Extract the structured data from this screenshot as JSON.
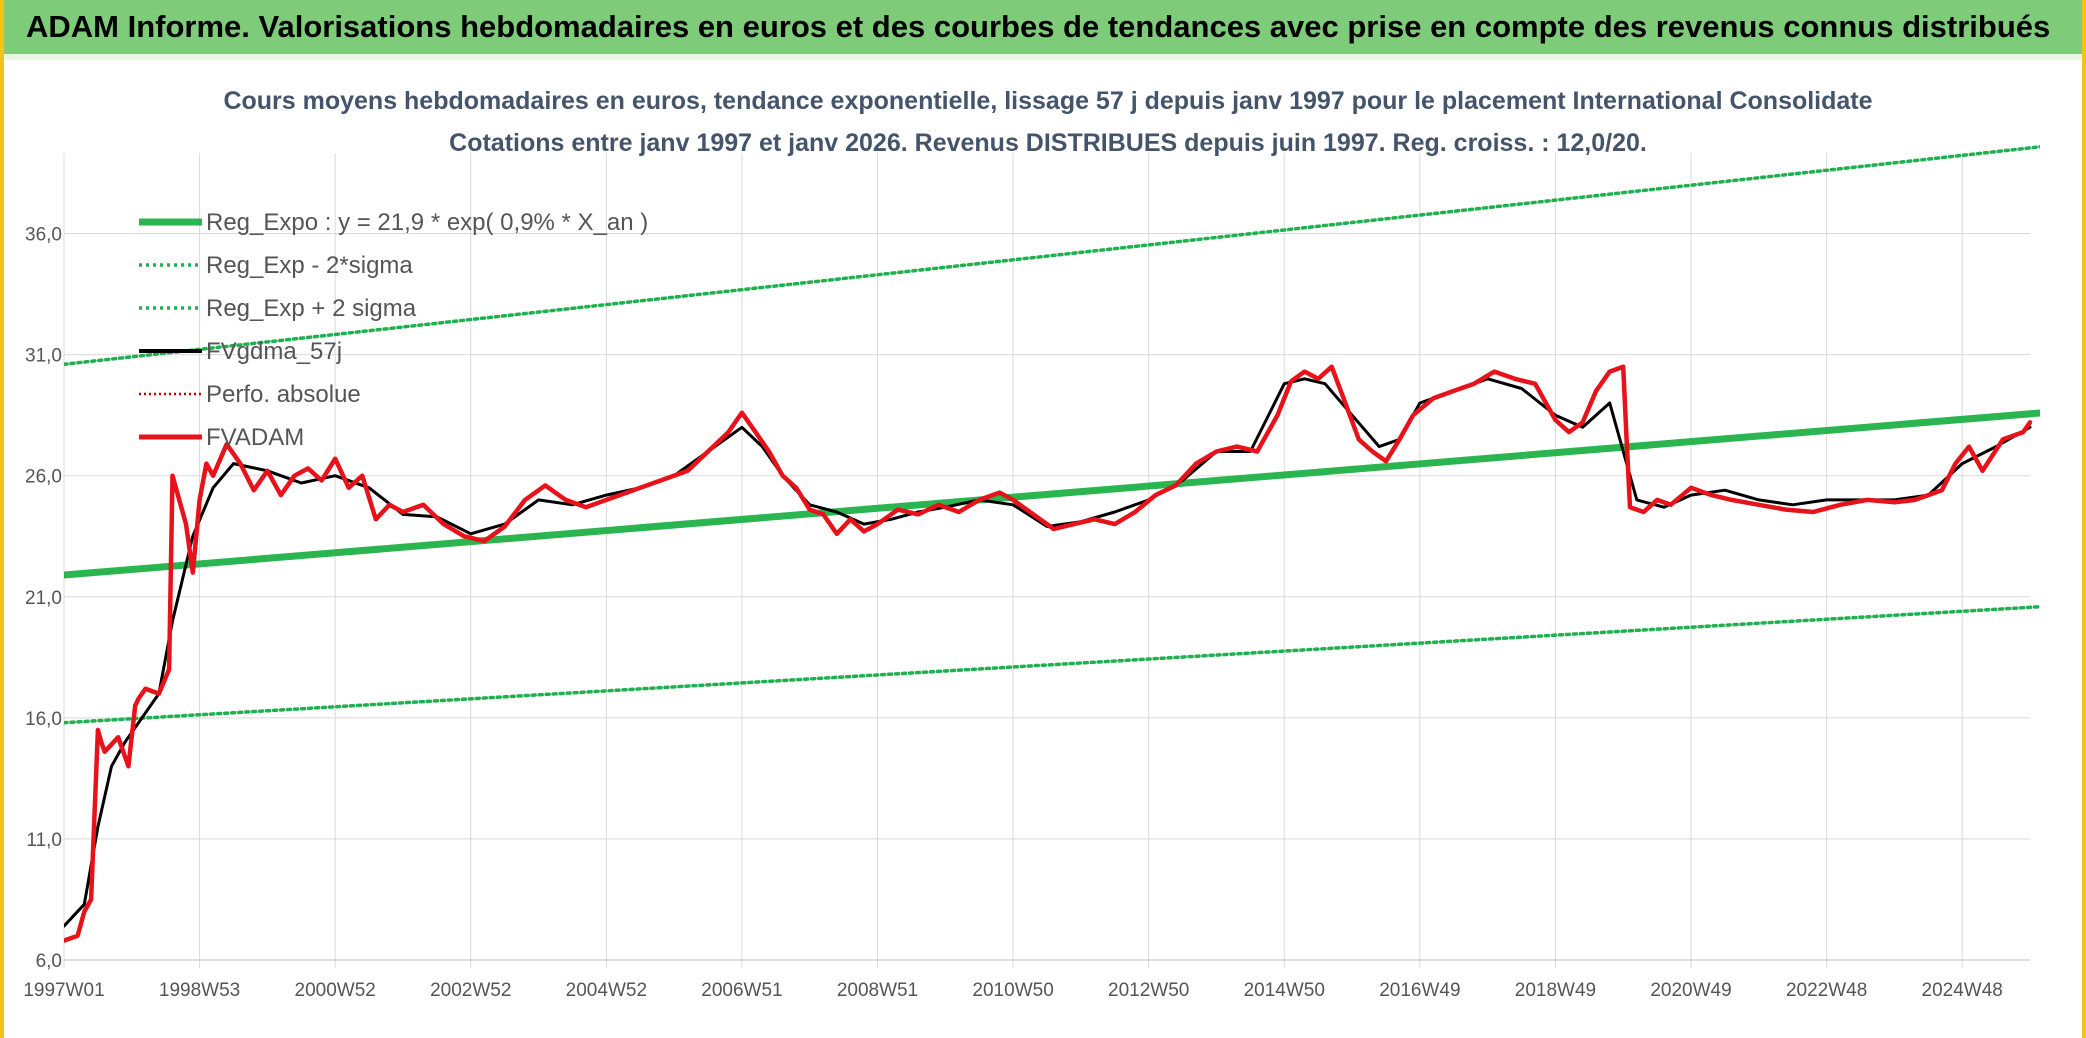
{
  "banner": {
    "title": "ADAM Informe. Valorisations hebdomadaires en euros et des courbes de tendances avec prise en compte des revenus connus distribués"
  },
  "colors": {
    "banner_bg": "#7ecb7a",
    "reg": "#2ab550",
    "band": "#1fb04f",
    "fvgdma": "#000000",
    "perfo": "#c00000",
    "fvadam": "#e8121b"
  },
  "chart_data": {
    "type": "line",
    "title_line1": "Cours moyens hebdomadaires en euros, tendance exponentielle, lissage 57 j depuis janv 1997 pour le placement International Consolidate",
    "title_line2": "Cotations entre janv 1997 et janv 2026. Revenus DISTRIBUES depuis juin 1997. Reg. croiss. : 12,0/20.",
    "x_range": [
      1997.0,
      2026.0
    ],
    "ylim": [
      6.0,
      38.5
    ],
    "y_ticks": [
      "6,0",
      "11,0",
      "16,0",
      "21,0",
      "26,0",
      "31,0",
      "36,0"
    ],
    "y_tick_values": [
      6,
      11,
      16,
      21,
      26,
      31,
      36
    ],
    "x_ticks": [
      "1997W01",
      "1998W53",
      "2000W52",
      "2002W52",
      "2004W52",
      "2006W51",
      "2008W51",
      "2010W50",
      "2012W50",
      "2014W50",
      "2016W49",
      "2018W49",
      "2020W49",
      "2022W48",
      "2024W48"
    ],
    "x_tick_values": [
      1997.0,
      1999.0,
      2001.0,
      2003.0,
      2005.0,
      2007.0,
      2009.0,
      2011.0,
      2013.0,
      2015.0,
      2017.0,
      2019.0,
      2021.0,
      2023.0,
      2025.0
    ],
    "legend": {
      "placement": "top-left",
      "entries": [
        {
          "label": "Reg_Expo : y = 21,9 * exp( 0,9% *  X_an )",
          "style": "thick"
        },
        {
          "label": "Reg_Exp - 2*sigma",
          "style": "dotted-green"
        },
        {
          "label": "Reg_Exp + 2 sigma",
          "style": "dotted-green"
        },
        {
          "label": "FVgdma_57j",
          "style": "solid-black"
        },
        {
          "label": "Perfo. absolue",
          "style": "dotted-red"
        },
        {
          "label": "FVADAM",
          "style": "solid-red"
        }
      ]
    },
    "series": [
      {
        "name": "Reg_Expo : y = 21,9 * exp( 0,9% *  X_an )",
        "x": [
          1997.0,
          2026.2
        ],
        "y": [
          21.9,
          28.6
        ]
      },
      {
        "name": "Reg_Exp - 2*sigma",
        "x": [
          1997.0,
          2026.2
        ],
        "y": [
          15.8,
          20.6
        ]
      },
      {
        "name": "Reg_Exp + 2 sigma",
        "x": [
          1997.0,
          2026.2
        ],
        "y": [
          30.6,
          39.6
        ]
      },
      {
        "name": "FVgdma_57j",
        "x": [
          1997.0,
          1997.3,
          1997.5,
          1997.7,
          1997.9,
          1998.1,
          1998.4,
          1998.6,
          1998.9,
          1999.2,
          1999.5,
          2000.0,
          2000.5,
          2001.0,
          2001.5,
          2002.0,
          2002.5,
          2003.0,
          2003.5,
          2004.0,
          2004.5,
          2005.0,
          2005.5,
          2006.0,
          2006.5,
          2007.0,
          2007.3,
          2007.6,
          2008.0,
          2008.4,
          2008.8,
          2009.2,
          2009.6,
          2010.0,
          2010.5,
          2011.0,
          2011.5,
          2012.0,
          2012.5,
          2013.0,
          2013.5,
          2014.0,
          2014.5,
          2015.0,
          2015.3,
          2015.6,
          2016.0,
          2016.4,
          2016.7,
          2017.0,
          2017.5,
          2018.0,
          2018.5,
          2019.0,
          2019.4,
          2019.8,
          2020.2,
          2020.6,
          2021.0,
          2021.5,
          2022.0,
          2022.5,
          2023.0,
          2023.5,
          2024.0,
          2024.5,
          2025.0,
          2025.5,
          2026.0
        ],
        "y": [
          7.4,
          8.3,
          11.5,
          14.0,
          15.0,
          15.8,
          17.0,
          20.0,
          23.5,
          25.5,
          26.5,
          26.2,
          25.7,
          26.0,
          25.5,
          24.4,
          24.3,
          23.6,
          24.0,
          25.0,
          24.8,
          25.2,
          25.5,
          26.0,
          27.0,
          28.0,
          27.2,
          26.0,
          24.8,
          24.5,
          24.0,
          24.2,
          24.5,
          24.7,
          25.0,
          24.8,
          23.9,
          24.1,
          24.5,
          25.0,
          25.8,
          27.0,
          27.0,
          29.8,
          30.0,
          29.8,
          28.5,
          27.2,
          27.5,
          29.0,
          29.5,
          30.0,
          29.6,
          28.5,
          28.0,
          29.0,
          25.0,
          24.7,
          25.2,
          25.4,
          25.0,
          24.8,
          25.0,
          25.0,
          25.0,
          25.2,
          26.5,
          27.2,
          28.0
        ]
      },
      {
        "name": "FVADAM",
        "x": [
          1997.0,
          1997.2,
          1997.3,
          1997.4,
          1997.5,
          1997.55,
          1997.6,
          1997.8,
          1997.95,
          1998.05,
          1998.1,
          1998.2,
          1998.4,
          1998.55,
          1998.6,
          1998.8,
          1998.9,
          1999.0,
          1999.1,
          1999.2,
          1999.4,
          1999.6,
          1999.8,
          2000.0,
          2000.2,
          2000.4,
          2000.6,
          2000.8,
          2001.0,
          2001.2,
          2001.4,
          2001.6,
          2001.8,
          2002.0,
          2002.3,
          2002.6,
          2002.9,
          2003.2,
          2003.5,
          2003.8,
          2004.1,
          2004.4,
          2004.7,
          2005.0,
          2005.4,
          2005.8,
          2006.2,
          2006.5,
          2006.8,
          2007.0,
          2007.2,
          2007.4,
          2007.6,
          2007.8,
          2008.0,
          2008.2,
          2008.4,
          2008.6,
          2008.8,
          2009.0,
          2009.3,
          2009.6,
          2009.9,
          2010.2,
          2010.5,
          2010.8,
          2011.0,
          2011.3,
          2011.6,
          2011.9,
          2012.2,
          2012.5,
          2012.8,
          2013.1,
          2013.4,
          2013.7,
          2014.0,
          2014.3,
          2014.6,
          2014.9,
          2015.1,
          2015.3,
          2015.5,
          2015.7,
          2015.9,
          2016.1,
          2016.3,
          2016.5,
          2016.7,
          2016.9,
          2017.2,
          2017.5,
          2017.8,
          2018.1,
          2018.4,
          2018.7,
          2019.0,
          2019.2,
          2019.4,
          2019.6,
          2019.8,
          2020.0,
          2020.05,
          2020.1,
          2020.3,
          2020.5,
          2020.7,
          2021.0,
          2021.3,
          2021.6,
          2022.0,
          2022.4,
          2022.8,
          2023.2,
          2023.6,
          2024.0,
          2024.3,
          2024.5,
          2024.7,
          2024.9,
          2025.1,
          2025.3,
          2025.6,
          2025.9,
          2026.0
        ],
        "y": [
          6.8,
          7.0,
          8.0,
          8.5,
          15.5,
          15.0,
          14.6,
          15.2,
          14.0,
          16.5,
          16.8,
          17.2,
          17.0,
          18.0,
          26.0,
          24.0,
          22.0,
          25.0,
          26.5,
          26.0,
          27.3,
          26.5,
          25.4,
          26.2,
          25.2,
          26.0,
          26.3,
          25.8,
          26.7,
          25.5,
          26.0,
          24.2,
          24.8,
          24.5,
          24.8,
          24.0,
          23.5,
          23.3,
          23.9,
          25.0,
          25.6,
          25.0,
          24.7,
          25.0,
          25.4,
          25.8,
          26.2,
          27.0,
          27.8,
          28.6,
          27.8,
          27.0,
          26.0,
          25.5,
          24.6,
          24.4,
          23.6,
          24.2,
          23.7,
          24.0,
          24.6,
          24.4,
          24.8,
          24.5,
          25.0,
          25.3,
          25.0,
          24.4,
          23.8,
          24.0,
          24.2,
          24.0,
          24.5,
          25.2,
          25.6,
          26.5,
          27.0,
          27.2,
          27.0,
          28.5,
          29.9,
          30.3,
          30.0,
          30.5,
          29.0,
          27.5,
          27.0,
          26.6,
          27.5,
          28.5,
          29.2,
          29.5,
          29.8,
          30.3,
          30.0,
          29.8,
          28.3,
          27.8,
          28.2,
          29.5,
          30.3,
          30.5,
          27.5,
          24.7,
          24.5,
          25.0,
          24.8,
          25.5,
          25.2,
          25.0,
          24.8,
          24.6,
          24.5,
          24.8,
          25.0,
          24.9,
          25.0,
          25.2,
          25.4,
          26.5,
          27.2,
          26.2,
          27.5,
          27.8,
          28.2
        ]
      }
    ]
  }
}
